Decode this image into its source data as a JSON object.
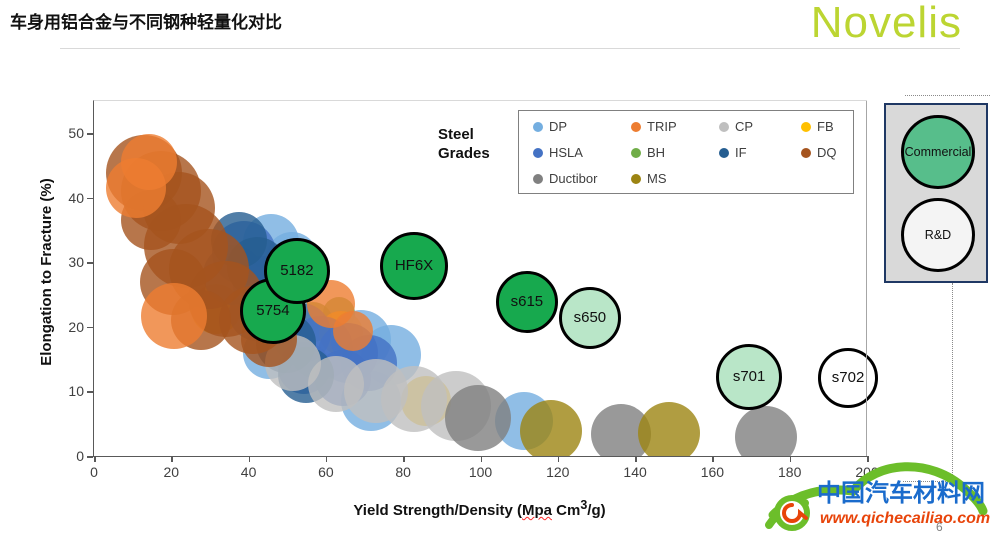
{
  "slide": {
    "title": "车身用铝合金与不同钢种轻量化对比",
    "brand": "Novelis",
    "page_number": "6"
  },
  "watermark": {
    "site_name": "中国汽车材料网",
    "site_url": "www.qichecailiao.com"
  },
  "chart_data": {
    "type": "scatter",
    "title": "",
    "ylabel": "Elongation to Fracture (%)",
    "xlabel_parts": {
      "p1": "Yield Strength/Density (",
      "misspelled": "Mpa",
      "p2": " Cm",
      "sup": "3",
      "p3": "/g)"
    },
    "xlim": [
      0,
      200
    ],
    "ylim": [
      0,
      55
    ],
    "x_ticks": [
      0,
      20,
      40,
      60,
      80,
      100,
      120,
      140,
      160,
      180,
      200
    ],
    "y_ticks": [
      0,
      10,
      20,
      30,
      40,
      50
    ],
    "grid": false,
    "legend_title": "Steel Grades",
    "legend_position": "top-right-inside",
    "series": [
      {
        "name": "BH",
        "color": "#70AD47",
        "points": [
          [
            56.7,
            20.7,
            20
          ],
          [
            63.4,
            22.2,
            16
          ]
        ]
      },
      {
        "name": "FB",
        "color": "#FFC000",
        "points": [
          [
            31.6,
            22.8,
            25
          ],
          [
            63.9,
            19.1,
            22
          ],
          [
            85.9,
            8.5,
            25
          ]
        ]
      },
      {
        "name": "DP",
        "color": "#74AEE0",
        "points": [
          [
            45.8,
            33.1,
            28
          ],
          [
            51.2,
            30.7,
            26
          ],
          [
            69.1,
            17.9,
            30
          ],
          [
            76.8,
            15.7,
            30
          ],
          [
            45.3,
            16.0,
            26
          ],
          [
            71.7,
            8.5,
            30
          ],
          [
            111.3,
            5.4,
            29
          ]
        ]
      },
      {
        "name": "HSLA",
        "color": "#4472C4",
        "points": [
          [
            38.8,
            31.5,
            32
          ],
          [
            36.0,
            28.0,
            30
          ],
          [
            43.7,
            26.4,
            30
          ],
          [
            42.2,
            22.2,
            28
          ],
          [
            53.6,
            19.1,
            30
          ],
          [
            58.7,
            16.8,
            32
          ],
          [
            65.7,
            16.0,
            30
          ],
          [
            71.2,
            14.4,
            28
          ],
          [
            54.3,
            13.7,
            26
          ],
          [
            64.4,
            12.1,
            28
          ]
        ]
      },
      {
        "name": "IF",
        "color": "#255E91",
        "points": [
          [
            37.5,
            33.4,
            28
          ],
          [
            42.2,
            29.3,
            30
          ],
          [
            49.7,
            17.5,
            30
          ],
          [
            54.9,
            12.6,
            28
          ]
        ]
      },
      {
        "name": "CP",
        "color": "#BFBFBF",
        "points": [
          [
            51.5,
            14.4,
            28
          ],
          [
            62.6,
            11.2,
            28
          ],
          [
            73.0,
            10.1,
            32
          ],
          [
            82.8,
            8.9,
            33
          ],
          [
            93.7,
            7.8,
            35
          ]
        ]
      },
      {
        "name": "Ductibor",
        "color": "#808080",
        "points": [
          [
            99.4,
            5.9,
            33
          ],
          [
            136.4,
            3.4,
            30
          ],
          [
            173.9,
            3.0,
            31
          ]
        ]
      },
      {
        "name": "MS",
        "color": "#9C8412",
        "points": [
          [
            118.2,
            3.9,
            31
          ],
          [
            148.8,
            3.6,
            31
          ]
        ]
      },
      {
        "name": "DQ",
        "color": "#A5541E",
        "points": [
          [
            12.9,
            43.9,
            38
          ],
          [
            17.3,
            41.1,
            40
          ],
          [
            14.7,
            36.5,
            30
          ],
          [
            22.0,
            38.4,
            36
          ],
          [
            23.8,
            32.6,
            42
          ],
          [
            29.8,
            29.0,
            40
          ],
          [
            20.4,
            26.9,
            33
          ],
          [
            34.2,
            24.4,
            38
          ],
          [
            41.1,
            21.0,
            34
          ],
          [
            27.7,
            21.0,
            30
          ],
          [
            45.3,
            18.2,
            28
          ]
        ]
      },
      {
        "name": "TRIP",
        "color": "#ED7D31",
        "points": [
          [
            14.2,
            45.5,
            28
          ],
          [
            10.9,
            41.5,
            30
          ],
          [
            20.7,
            21.7,
            33
          ],
          [
            61.3,
            23.6,
            24
          ],
          [
            67.0,
            19.4,
            20
          ]
        ]
      }
    ],
    "legend_order": [
      "DP",
      "TRIP",
      "CP",
      "FB",
      "HSLA",
      "BH",
      "IF",
      "DQ",
      "Ductibor",
      "MS"
    ],
    "annotations": [
      {
        "label": "5754",
        "x": 46.3,
        "y": 22.5,
        "r": 33,
        "fill": "#17A94E"
      },
      {
        "label": "5182",
        "x": 52.5,
        "y": 28.7,
        "r": 33,
        "fill": "#17A94E"
      },
      {
        "label": "HF6X",
        "x": 82.8,
        "y": 29.5,
        "r": 34,
        "fill": "#17A94E"
      },
      {
        "label": "s615",
        "x": 112.0,
        "y": 23.9,
        "r": 31,
        "fill": "#17A94E"
      },
      {
        "label": "s650",
        "x": 128.3,
        "y": 21.4,
        "r": 31,
        "fill": "#B9E6C8"
      },
      {
        "label": "s701",
        "x": 169.5,
        "y": 12.3,
        "r": 33,
        "fill": "#B9E6C8"
      },
      {
        "label": "s702",
        "x": 195.1,
        "y": 12.1,
        "r": 30,
        "fill": "#FFFFFF"
      }
    ],
    "highlight_legend": [
      {
        "label": "Commercial",
        "fill": "#57BE8B"
      },
      {
        "label": "R&D",
        "fill": "#F4F4F4"
      }
    ],
    "colors": {
      "axis": "#595959",
      "plot_border": "#D9D9D9",
      "highlight_box_bg": "#D9D9D9",
      "highlight_box_border": "#1F3864",
      "brand_green": "#BCD532",
      "watermark_blue": "#1A6BCC",
      "watermark_orange": "#E8440A",
      "watermark_green": "#6CBE2A"
    }
  }
}
